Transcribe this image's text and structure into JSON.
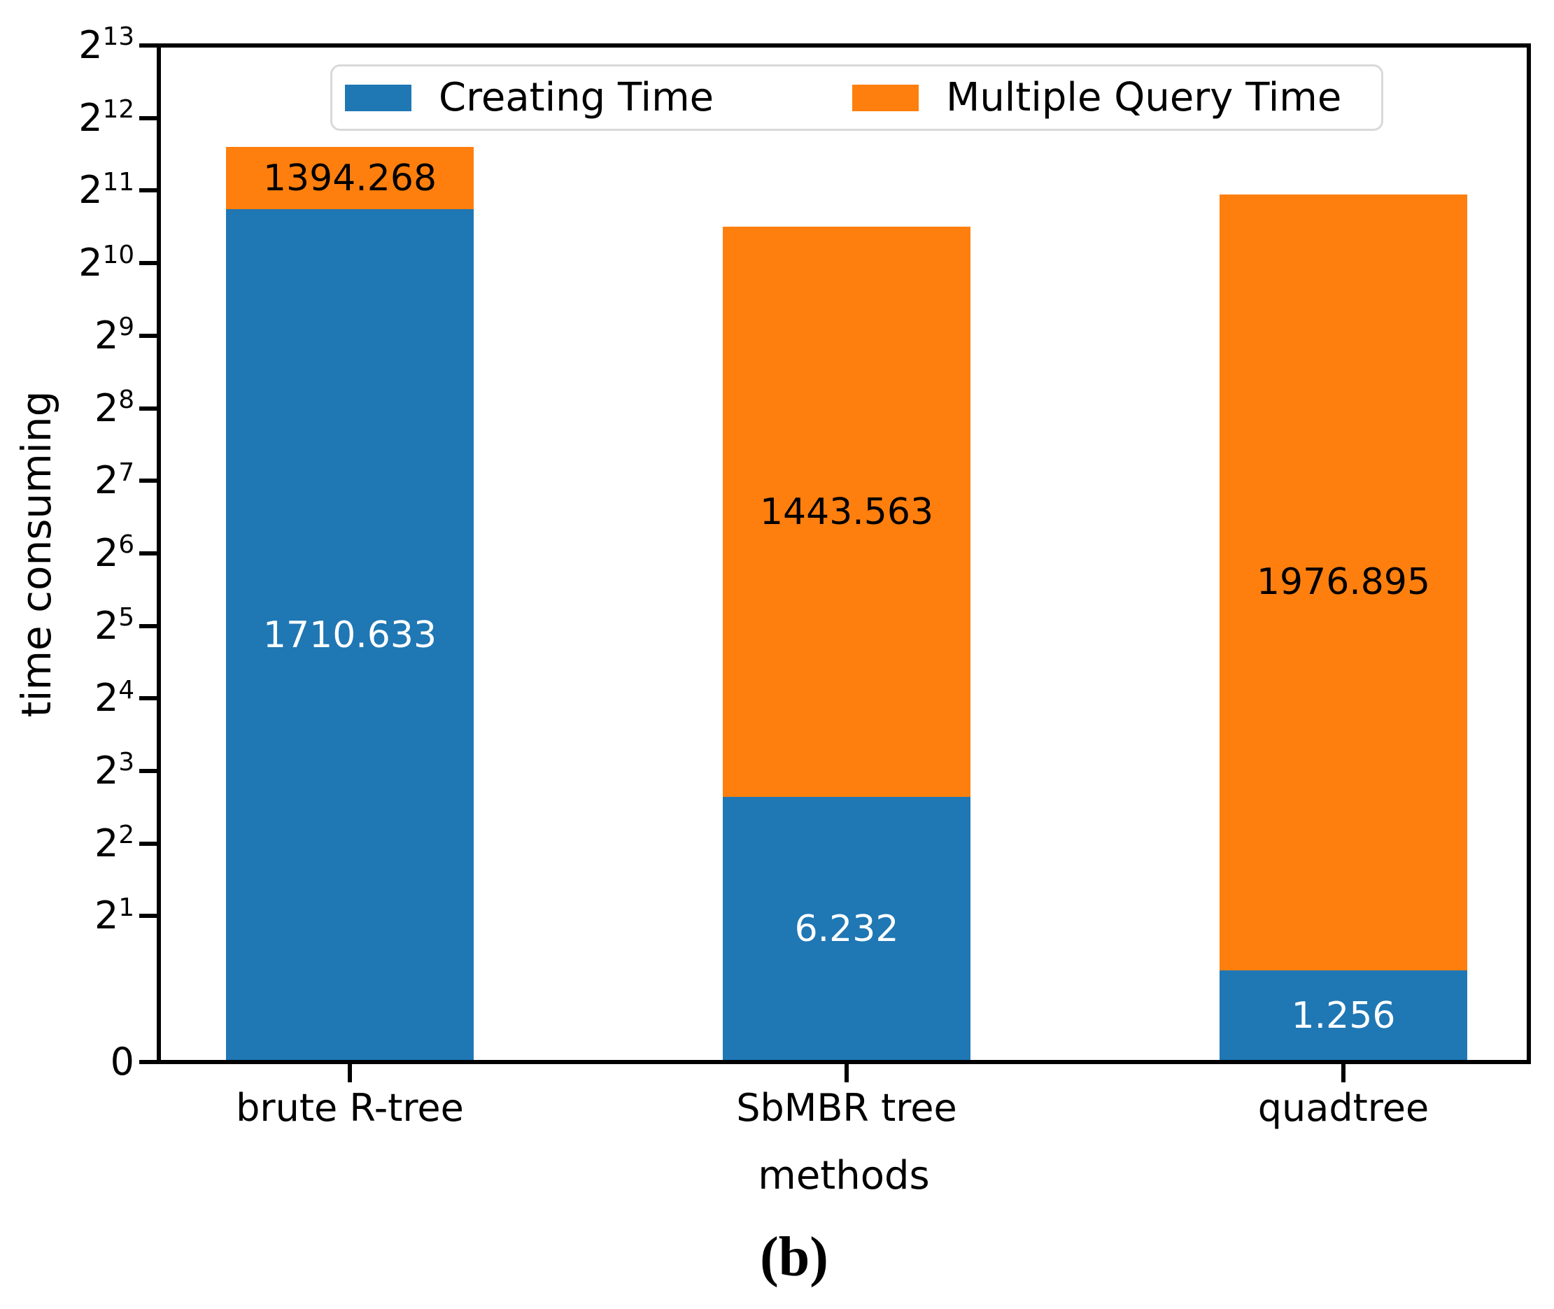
{
  "figure": {
    "caption": "(b)",
    "background": "#ffffff"
  },
  "chart_data": {
    "type": "bar",
    "stacked": true,
    "title": "",
    "xlabel": "methods",
    "ylabel": "time consuming",
    "categories": [
      "brute R-tree",
      "SbMBR tree",
      "quadtree"
    ],
    "series": [
      {
        "name": "Creating Time",
        "color": "#1f77b4",
        "label_color": "#ffffff",
        "values": [
          1710.633,
          6.232,
          1.256
        ],
        "labels": [
          "1710.633",
          "6.232",
          "1.256"
        ]
      },
      {
        "name": "Multiple Query Time",
        "color": "#ff7f0e",
        "label_color": "#000000",
        "values": [
          1394.268,
          1443.563,
          1976.895
        ],
        "labels": [
          "1394.268",
          "1443.563",
          "1976.895"
        ]
      }
    ],
    "totals": [
      3104.901,
      1449.795,
      1978.151
    ],
    "y_scale": "symlog-base2",
    "ylim": [
      0,
      8192
    ],
    "grid": false,
    "legend": {
      "position": "upper center",
      "entries": [
        "Creating Time",
        "Multiple Query Time"
      ],
      "border_color": "#d9d9d9"
    },
    "y_ticks": [
      {
        "value": 8192,
        "base": "2",
        "exp": "13"
      },
      {
        "value": 4096,
        "base": "2",
        "exp": "12"
      },
      {
        "value": 2048,
        "base": "2",
        "exp": "11"
      },
      {
        "value": 1024,
        "base": "2",
        "exp": "10"
      },
      {
        "value": 512,
        "base": "2",
        "exp": "9"
      },
      {
        "value": 256,
        "base": "2",
        "exp": "8"
      },
      {
        "value": 128,
        "base": "2",
        "exp": "7"
      },
      {
        "value": 64,
        "base": "2",
        "exp": "6"
      },
      {
        "value": 32,
        "base": "2",
        "exp": "5"
      },
      {
        "value": 16,
        "base": "2",
        "exp": "4"
      },
      {
        "value": 8,
        "base": "2",
        "exp": "3"
      },
      {
        "value": 4,
        "base": "2",
        "exp": "2"
      },
      {
        "value": 2,
        "base": "2",
        "exp": "1"
      },
      {
        "value": 0,
        "label": "0"
      }
    ]
  }
}
